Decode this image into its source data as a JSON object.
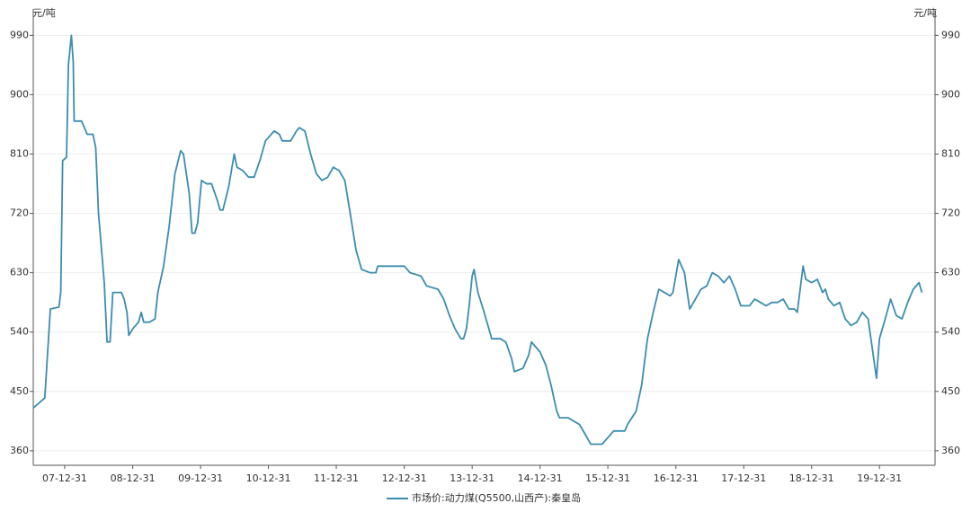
{
  "chart_data": {
    "type": "line",
    "y_label": "元/吨",
    "x": [
      "07-07-15",
      "07-09-15",
      "07-10-15",
      "07-11-30",
      "07-12-10",
      "07-12-20",
      "08-01-10",
      "08-01-20",
      "08-02-05",
      "08-02-15",
      "08-02-20",
      "08-03-31",
      "08-04-30",
      "08-05-31",
      "08-06-15",
      "08-06-30",
      "08-07-31",
      "08-08-15",
      "08-08-31",
      "08-09-15",
      "08-10-31",
      "08-11-15",
      "08-11-30",
      "08-12-10",
      "08-12-31",
      "09-01-31",
      "09-02-15",
      "09-02-28",
      "09-03-31",
      "09-04-30",
      "09-05-15",
      "09-06-15",
      "09-07-15",
      "09-08-15",
      "09-09-15",
      "09-09-30",
      "09-10-31",
      "09-11-15",
      "09-11-30",
      "09-12-15",
      "10-01-05",
      "10-01-31",
      "10-02-28",
      "10-03-31",
      "10-04-15",
      "10-04-30",
      "10-05-31",
      "10-06-30",
      "10-07-15",
      "10-08-15",
      "10-09-15",
      "10-10-15",
      "10-11-15",
      "10-12-15",
      "11-01-31",
      "11-02-28",
      "11-03-15",
      "11-04-30",
      "11-05-31",
      "11-06-15",
      "11-07-15",
      "11-08-15",
      "11-09-15",
      "11-10-15",
      "11-11-15",
      "11-12-15",
      "12-01-15",
      "12-02-15",
      "12-03-15",
      "12-04-15",
      "12-05-15",
      "12-06-30",
      "12-07-31",
      "12-08-10",
      "12-12-31",
      "13-01-31",
      "13-03-31",
      "13-04-30",
      "13-06-30",
      "13-07-31",
      "13-08-31",
      "13-09-30",
      "13-10-31",
      "13-11-15",
      "13-11-30",
      "13-12-15",
      "13-12-31",
      "14-01-10",
      "14-01-31",
      "14-02-28",
      "14-03-31",
      "14-04-15",
      "14-05-31",
      "14-06-30",
      "14-07-31",
      "14-08-15",
      "14-09-30",
      "14-10-31",
      "14-11-15",
      "14-11-30",
      "14-12-31",
      "15-01-31",
      "15-02-28",
      "15-03-31",
      "15-04-15",
      "15-05-31",
      "15-06-30",
      "15-07-31",
      "15-08-31",
      "15-09-30",
      "15-11-30",
      "15-12-31",
      "16-01-31",
      "16-03-31",
      "16-04-15",
      "16-05-31",
      "16-06-30",
      "16-07-31",
      "16-08-31",
      "16-09-30",
      "16-10-31",
      "16-11-30",
      "16-12-15",
      "17-01-15",
      "17-02-15",
      "17-03-15",
      "17-04-15",
      "17-05-15",
      "17-06-15",
      "17-07-15",
      "17-08-15",
      "17-09-15",
      "17-10-15",
      "17-11-15",
      "17-12-15",
      "18-01-31",
      "18-02-28",
      "18-03-31",
      "18-04-30",
      "18-05-31",
      "18-06-30",
      "18-07-31",
      "18-08-31",
      "18-09-30",
      "18-10-15",
      "18-11-15",
      "18-11-30",
      "18-12-31",
      "19-01-31",
      "19-02-28",
      "19-03-15",
      "19-03-31",
      "19-04-30",
      "19-05-31",
      "19-06-30",
      "19-07-31",
      "19-08-31",
      "19-09-30",
      "19-10-31",
      "19-11-30",
      "19-12-15",
      "19-12-31",
      "20-01-31",
      "20-02-29",
      "20-03-31",
      "20-04-30",
      "20-05-31",
      "20-06-30",
      "20-07-31",
      "20-08-15"
    ],
    "series": [
      {
        "name": "市场价:动力煤(Q5500,山西产):秦皇岛",
        "color": "#3c8db0",
        "values": [
          425,
          440,
          575,
          578,
          600,
          800,
          805,
          945,
          990,
          950,
          860,
          860,
          840,
          840,
          820,
          720,
          615,
          525,
          525,
          600,
          600,
          590,
          570,
          535,
          545,
          555,
          570,
          555,
          555,
          560,
          600,
          640,
          700,
          780,
          815,
          810,
          750,
          690,
          690,
          705,
          770,
          765,
          765,
          740,
          725,
          725,
          760,
          810,
          790,
          785,
          775,
          775,
          800,
          830,
          845,
          840,
          830,
          830,
          845,
          850,
          845,
          810,
          780,
          770,
          775,
          790,
          785,
          770,
          720,
          665,
          635,
          630,
          630,
          640,
          640,
          630,
          625,
          610,
          605,
          590,
          565,
          545,
          530,
          530,
          545,
          580,
          625,
          635,
          600,
          575,
          545,
          530,
          530,
          525,
          500,
          480,
          485,
          505,
          525,
          520,
          510,
          490,
          460,
          420,
          410,
          410,
          405,
          400,
          385,
          370,
          370,
          380,
          390,
          390,
          400,
          420,
          460,
          530,
          570,
          605,
          600,
          595,
          600,
          650,
          630,
          575,
          590,
          605,
          610,
          630,
          625,
          615,
          625,
          605,
          580,
          580,
          590,
          585,
          580,
          585,
          585,
          590,
          575,
          575,
          570,
          640,
          620,
          615,
          620,
          600,
          605,
          590,
          580,
          585,
          560,
          550,
          555,
          570,
          560,
          500,
          470,
          530,
          560,
          590,
          565,
          560,
          585,
          605,
          615,
          600
        ]
      }
    ],
    "xlim": [
      "07-07-15",
      "20-10-25"
    ],
    "xticks": [
      "07-12-31",
      "08-12-31",
      "09-12-31",
      "10-12-31",
      "11-12-31",
      "12-12-31",
      "13-12-31",
      "14-12-31",
      "15-12-31",
      "16-12-31",
      "17-12-31",
      "18-12-31",
      "19-12-31"
    ],
    "ylim": [
      338,
      1030
    ],
    "yticks": [
      360,
      450,
      540,
      630,
      720,
      810,
      900,
      990
    ],
    "grid": true,
    "legend": "bottom"
  }
}
